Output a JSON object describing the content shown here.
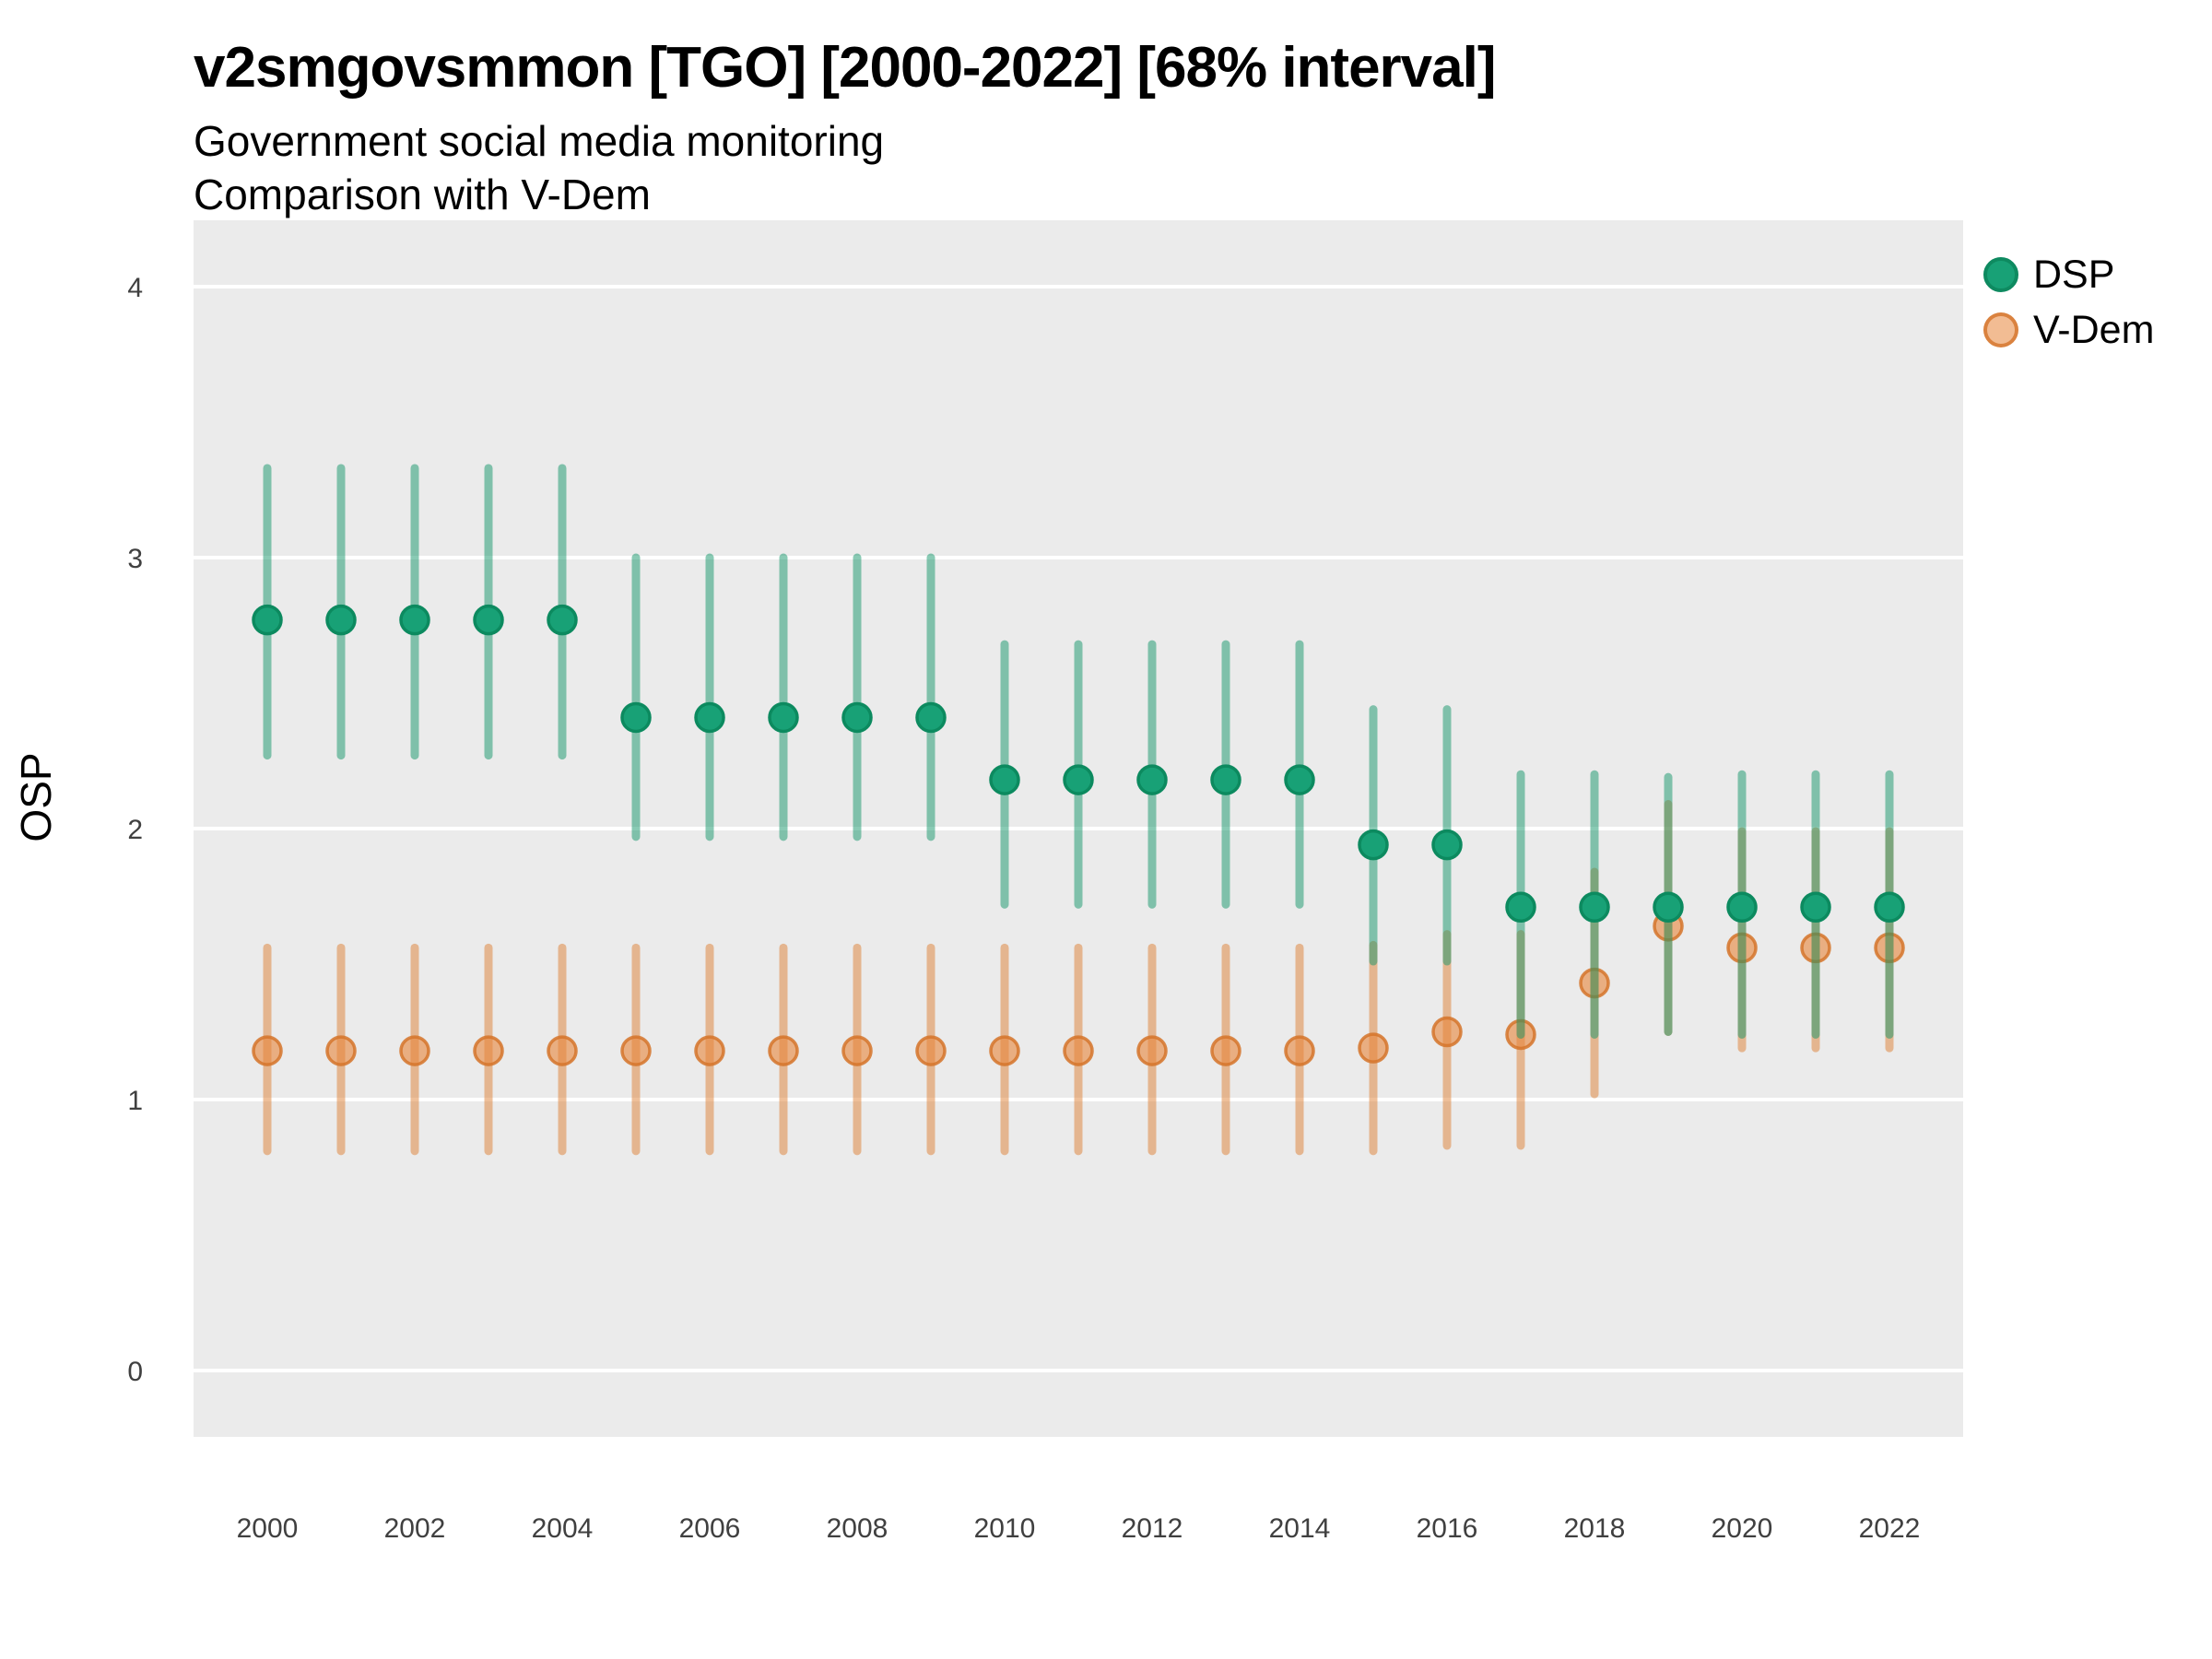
{
  "header": {
    "title": "v2smgovsmmon [TGO] [2000-2022] [68% interval]",
    "subtitle1": "Government social media monitoring",
    "subtitle2": "Comparison with V-Dem"
  },
  "legend": {
    "items": [
      {
        "label": "DSP",
        "swatch": "dsp"
      },
      {
        "label": "V-Dem",
        "swatch": "vdem"
      }
    ]
  },
  "colors": {
    "panel_bg": "#EBEBEB",
    "grid": "#FFFFFF",
    "tick_text": "#404040",
    "axis_title_text": "#000000",
    "dsp_point_fill": "#18A176",
    "dsp_point_stroke": "#0C8A5F",
    "dsp_line": "rgba(20,150,105,0.5)",
    "vdem_point_fill": "rgba(232,133,58,0.6)",
    "vdem_point_stroke": "rgba(213,116,42,0.85)",
    "vdem_line": "rgba(222,127,51,0.5)"
  },
  "chart_data": {
    "type": "pointrange",
    "title": "v2smgovsmmon [TGO] [2000-2022] [68% interval]",
    "subtitle": [
      "Government social media monitoring",
      "Comparison with V-Dem"
    ],
    "xlabel": "",
    "ylabel": "OSP",
    "ylim": [
      -0.25,
      4.25
    ],
    "yticks": [
      0,
      1,
      2,
      3,
      4
    ],
    "xticks": [
      2000,
      2002,
      2004,
      2006,
      2008,
      2010,
      2012,
      2014,
      2016,
      2018,
      2020,
      2022
    ],
    "grid": "major-y",
    "legend_position": "right",
    "interval_level": "68%",
    "x": [
      2000,
      2001,
      2002,
      2003,
      2004,
      2005,
      2006,
      2007,
      2008,
      2009,
      2010,
      2011,
      2012,
      2013,
      2014,
      2015,
      2016,
      2017,
      2018,
      2019,
      2020,
      2021,
      2022
    ],
    "series": [
      {
        "name": "DSP",
        "est": [
          2.77,
          2.77,
          2.77,
          2.77,
          2.77,
          2.41,
          2.41,
          2.41,
          2.41,
          2.41,
          2.18,
          2.18,
          2.18,
          2.18,
          2.18,
          1.94,
          1.94,
          1.71,
          1.71,
          1.71,
          1.71,
          1.71,
          1.71
        ],
        "lo": [
          2.27,
          2.27,
          2.27,
          2.27,
          2.27,
          1.97,
          1.97,
          1.97,
          1.97,
          1.97,
          1.72,
          1.72,
          1.72,
          1.72,
          1.72,
          1.51,
          1.51,
          1.24,
          1.24,
          1.25,
          1.24,
          1.24,
          1.24
        ],
        "hi": [
          3.33,
          3.33,
          3.33,
          3.33,
          3.33,
          3.0,
          3.0,
          3.0,
          3.0,
          3.0,
          2.68,
          2.68,
          2.68,
          2.68,
          2.68,
          2.44,
          2.44,
          2.2,
          2.2,
          2.19,
          2.2,
          2.2,
          2.2
        ]
      },
      {
        "name": "V-Dem",
        "est": [
          1.18,
          1.18,
          1.18,
          1.18,
          1.18,
          1.18,
          1.18,
          1.18,
          1.18,
          1.18,
          1.18,
          1.18,
          1.18,
          1.18,
          1.18,
          1.19,
          1.25,
          1.24,
          1.43,
          1.64,
          1.56,
          1.56,
          1.56
        ],
        "lo": [
          0.81,
          0.81,
          0.81,
          0.81,
          0.81,
          0.81,
          0.81,
          0.81,
          0.81,
          0.81,
          0.81,
          0.81,
          0.81,
          0.81,
          0.81,
          0.81,
          0.83,
          0.83,
          1.02,
          1.25,
          1.19,
          1.19,
          1.19
        ],
        "hi": [
          1.56,
          1.56,
          1.56,
          1.56,
          1.56,
          1.56,
          1.56,
          1.56,
          1.56,
          1.56,
          1.56,
          1.56,
          1.56,
          1.56,
          1.56,
          1.57,
          1.61,
          1.61,
          1.84,
          2.09,
          1.99,
          1.99,
          1.99
        ]
      }
    ]
  }
}
